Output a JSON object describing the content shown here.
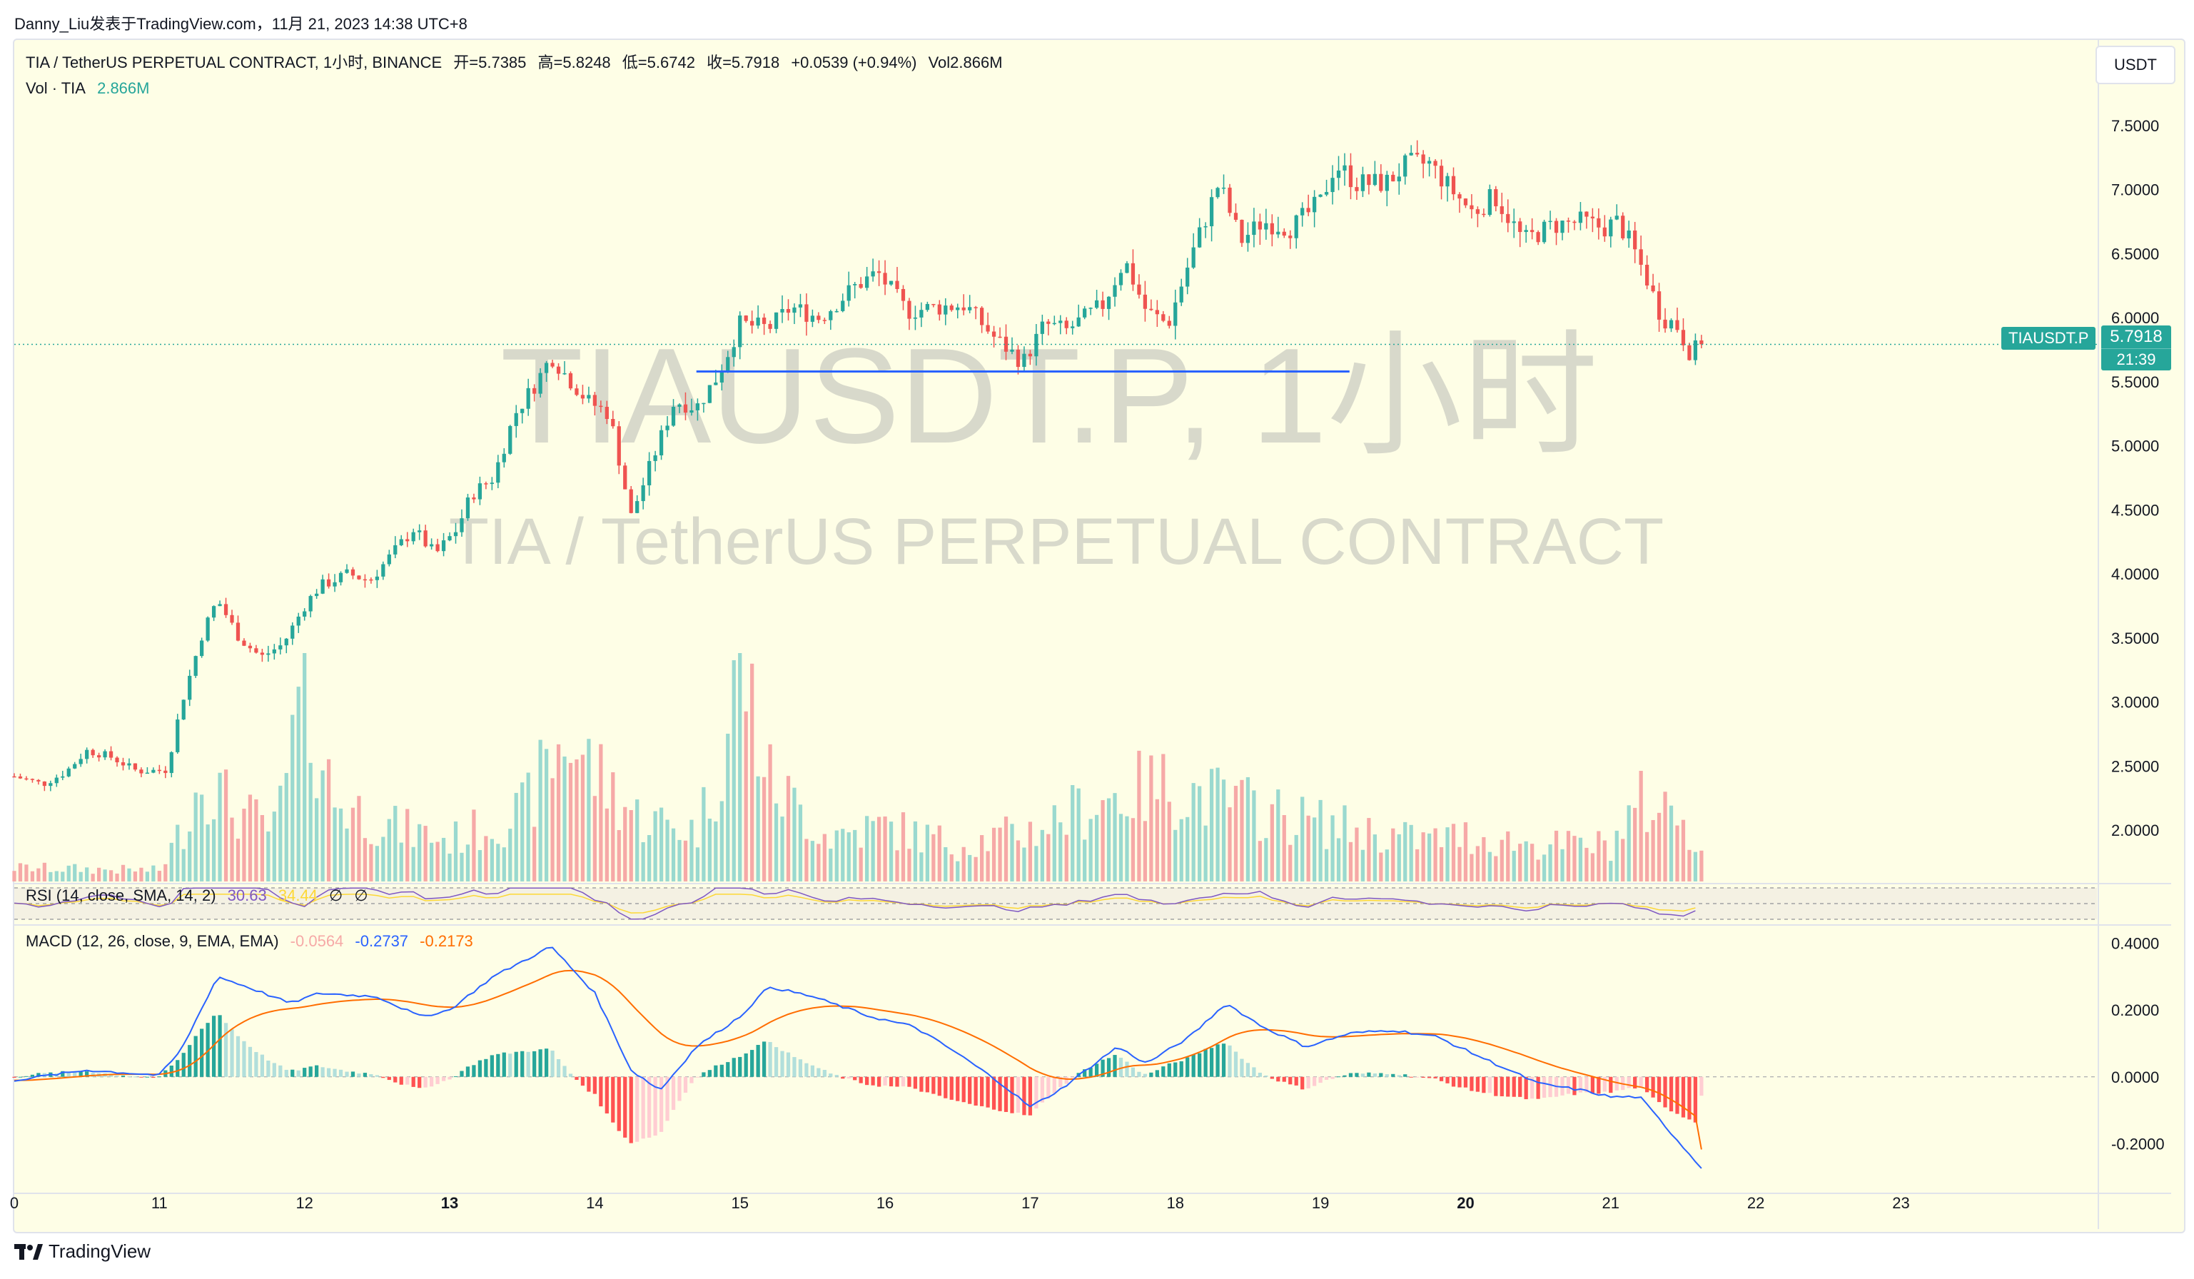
{
  "topline": "Danny_Liu发表于TradingView.com，11月 21, 2023 14:38 UTC+8",
  "header": {
    "symbol_line": "TIA / TetherUS PERPETUAL CONTRACT, 1小时, BINANCE",
    "open_label": "开=5.7385",
    "high_label": "高=5.8248",
    "low_label": "低=5.6742",
    "close_label": "收=5.7918",
    "change": "+0.0539 (+0.94%)",
    "vol_label": "Vol2.866M",
    "vol_series_label": "Vol · TIA",
    "vol_series_value": "2.866M"
  },
  "unit_button": "USDT",
  "price_tag": {
    "symbol": "TIAUSDT.P",
    "price": "5.7918",
    "countdown": "21:39"
  },
  "watermark": {
    "line1": "TIAUSDT.P, 1小时",
    "line2": "TIA / TetherUS PERPETUAL CONTRACT"
  },
  "rsi_legend": {
    "label": "RSI (14, close, SMA, 14, 2)",
    "value": "30.63",
    "sma": "34.44",
    "v3": "∅",
    "v4": "∅"
  },
  "macd_legend": {
    "label": "MACD (12, 26, close, 9, EMA, EMA)",
    "hist": "-0.0564",
    "macd": "-0.2737",
    "signal": "-0.2173"
  },
  "footer": {
    "brand": "TradingView"
  },
  "colors": {
    "up": "#26a69a",
    "down": "#ef5350",
    "vol_up": "#9ad9cf",
    "vol_down": "#f6a9a7",
    "macd_line": "#2962ff",
    "signal_line": "#ff6d00",
    "rsi_line": "#7e57c2",
    "rsi_sma": "#fdd835",
    "hline": "#2962ff",
    "background": "#fefee6"
  },
  "chart_data": {
    "type": "candlestick",
    "timeframe": "1小时",
    "x_ticks": [
      {
        "label": "0",
        "day": 10
      },
      {
        "label": "11",
        "day": 11
      },
      {
        "label": "12",
        "day": 12
      },
      {
        "label": "13",
        "day": 13
      },
      {
        "label": "14",
        "day": 14
      },
      {
        "label": "15",
        "day": 15
      },
      {
        "label": "16",
        "day": 16
      },
      {
        "label": "17",
        "day": 17
      },
      {
        "label": "18",
        "day": 18
      },
      {
        "label": "19",
        "day": 19
      },
      {
        "label": "20",
        "day": 20
      },
      {
        "label": "21",
        "day": 21
      },
      {
        "label": "22",
        "day": 22
      },
      {
        "label": "23",
        "day": 23
      }
    ],
    "x_range_days": [
      10,
      24.35
    ],
    "price_axis": {
      "ticks": [
        "7.5000",
        "7.0000",
        "6.5000",
        "6.0000",
        "5.5000",
        "5.0000",
        "4.5000",
        "4.0000",
        "3.5000",
        "3.0000",
        "2.5000",
        "2.0000"
      ],
      "range": [
        1.6,
        7.95
      ]
    },
    "macd_axis": {
      "ticks": [
        "0.4000",
        "0.2000",
        "0.0000",
        "-0.2000"
      ],
      "range": [
        -0.34,
        0.45
      ]
    },
    "current_price": 5.7918,
    "support_line": {
      "start_day": 14.7,
      "end_day": 19.2,
      "price": 5.58
    },
    "price_anchors": [
      [
        10.0,
        2.42
      ],
      [
        10.2,
        2.36
      ],
      [
        10.35,
        2.45
      ],
      [
        10.5,
        2.62
      ],
      [
        10.65,
        2.58
      ],
      [
        10.85,
        2.46
      ],
      [
        11.05,
        2.47
      ],
      [
        11.15,
        2.98
      ],
      [
        11.3,
        3.55
      ],
      [
        11.4,
        3.8
      ],
      [
        11.55,
        3.5
      ],
      [
        11.7,
        3.35
      ],
      [
        11.85,
        3.45
      ],
      [
        12.0,
        3.75
      ],
      [
        12.1,
        3.9
      ],
      [
        12.3,
        4.0
      ],
      [
        12.45,
        3.95
      ],
      [
        12.6,
        4.15
      ],
      [
        12.75,
        4.35
      ],
      [
        12.9,
        4.15
      ],
      [
        13.05,
        4.35
      ],
      [
        13.15,
        4.62
      ],
      [
        13.3,
        4.75
      ],
      [
        13.45,
        5.25
      ],
      [
        13.6,
        5.5
      ],
      [
        13.7,
        5.7
      ],
      [
        13.8,
        5.55
      ],
      [
        13.95,
        5.35
      ],
      [
        14.1,
        5.25
      ],
      [
        14.25,
        4.45
      ],
      [
        14.4,
        4.9
      ],
      [
        14.55,
        5.35
      ],
      [
        14.7,
        5.3
      ],
      [
        14.85,
        5.55
      ],
      [
        15.0,
        5.95
      ],
      [
        15.2,
        5.92
      ],
      [
        15.35,
        6.08
      ],
      [
        15.55,
        6.0
      ],
      [
        15.8,
        6.25
      ],
      [
        15.95,
        6.35
      ],
      [
        16.15,
        6.05
      ],
      [
        16.35,
        6.08
      ],
      [
        16.55,
        6.1
      ],
      [
        16.75,
        5.85
      ],
      [
        16.95,
        5.65
      ],
      [
        17.1,
        5.95
      ],
      [
        17.25,
        5.9
      ],
      [
        17.5,
        6.1
      ],
      [
        17.65,
        6.45
      ],
      [
        17.8,
        6.05
      ],
      [
        17.95,
        5.95
      ],
      [
        18.1,
        6.45
      ],
      [
        18.3,
        7.05
      ],
      [
        18.45,
        6.6
      ],
      [
        18.6,
        6.75
      ],
      [
        18.8,
        6.7
      ],
      [
        19.0,
        6.9
      ],
      [
        19.1,
        7.2
      ],
      [
        19.25,
        7.05
      ],
      [
        19.45,
        7.05
      ],
      [
        19.6,
        7.2
      ],
      [
        19.75,
        7.2
      ],
      [
        19.9,
        7.0
      ],
      [
        20.05,
        6.82
      ],
      [
        20.2,
        6.95
      ],
      [
        20.4,
        6.6
      ],
      [
        20.6,
        6.72
      ],
      [
        20.8,
        6.75
      ],
      [
        20.95,
        6.7
      ],
      [
        21.05,
        6.75
      ],
      [
        21.15,
        6.55
      ],
      [
        21.25,
        6.3
      ],
      [
        21.35,
        6.0
      ],
      [
        21.45,
        5.95
      ],
      [
        21.55,
        5.72
      ],
      [
        21.62,
        5.79
      ]
    ],
    "volume_anchors": [
      [
        10.0,
        0.15
      ],
      [
        11.0,
        0.12
      ],
      [
        11.15,
        0.55
      ],
      [
        11.3,
        1.2
      ],
      [
        11.5,
        0.8
      ],
      [
        11.8,
        0.55
      ],
      [
        12.0,
        2.1
      ],
      [
        12.2,
        0.9
      ],
      [
        12.6,
        0.6
      ],
      [
        13.0,
        0.45
      ],
      [
        13.5,
        0.75
      ],
      [
        13.8,
        1.6
      ],
      [
        14.0,
        1.2
      ],
      [
        14.3,
        0.7
      ],
      [
        14.7,
        0.55
      ],
      [
        14.9,
        1.45
      ],
      [
        15.0,
        2.5
      ],
      [
        15.2,
        1.1
      ],
      [
        15.6,
        0.5
      ],
      [
        16.0,
        0.6
      ],
      [
        16.5,
        0.4
      ],
      [
        17.0,
        0.55
      ],
      [
        17.5,
        0.9
      ],
      [
        17.9,
        1.05
      ],
      [
        18.3,
        0.9
      ],
      [
        18.8,
        0.7
      ],
      [
        19.3,
        0.55
      ],
      [
        19.7,
        0.45
      ],
      [
        20.0,
        0.5
      ],
      [
        20.5,
        0.4
      ],
      [
        21.0,
        0.4
      ],
      [
        21.2,
        0.85
      ],
      [
        21.5,
        0.75
      ],
      [
        21.62,
        0.3
      ]
    ],
    "macd_anchors": [
      [
        10.0,
        -0.01
      ],
      [
        10.5,
        0.02
      ],
      [
        11.0,
        0.005
      ],
      [
        11.15,
        0.08
      ],
      [
        11.4,
        0.3
      ],
      [
        11.6,
        0.27
      ],
      [
        11.9,
        0.22
      ],
      [
        12.1,
        0.25
      ],
      [
        12.5,
        0.24
      ],
      [
        12.8,
        0.18
      ],
      [
        13.0,
        0.2
      ],
      [
        13.3,
        0.3
      ],
      [
        13.7,
        0.39
      ],
      [
        14.0,
        0.25
      ],
      [
        14.25,
        0.02
      ],
      [
        14.45,
        -0.04
      ],
      [
        14.7,
        0.09
      ],
      [
        15.0,
        0.18
      ],
      [
        15.2,
        0.27
      ],
      [
        15.5,
        0.24
      ],
      [
        15.9,
        0.18
      ],
      [
        16.2,
        0.15
      ],
      [
        16.5,
        0.07
      ],
      [
        16.8,
        -0.02
      ],
      [
        17.0,
        -0.09
      ],
      [
        17.2,
        -0.04
      ],
      [
        17.6,
        0.09
      ],
      [
        17.8,
        0.04
      ],
      [
        18.1,
        0.12
      ],
      [
        18.35,
        0.22
      ],
      [
        18.6,
        0.15
      ],
      [
        18.9,
        0.09
      ],
      [
        19.2,
        0.13
      ],
      [
        19.5,
        0.14
      ],
      [
        19.8,
        0.12
      ],
      [
        20.2,
        0.04
      ],
      [
        20.5,
        -0.02
      ],
      [
        20.8,
        -0.04
      ],
      [
        21.0,
        -0.06
      ],
      [
        21.2,
        -0.06
      ],
      [
        21.4,
        -0.16
      ],
      [
        21.62,
        -0.27
      ]
    ],
    "rsi_range": [
      0,
      100
    ],
    "rsi_last": 30.63,
    "rsi_sma_last": 34.44
  }
}
